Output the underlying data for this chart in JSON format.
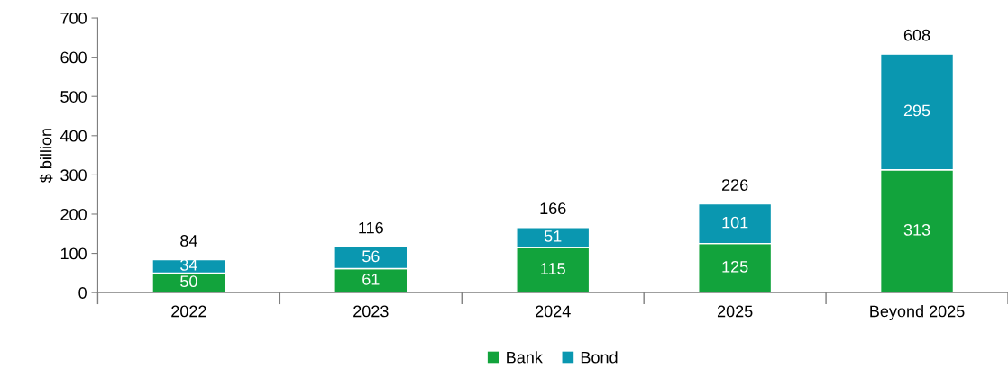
{
  "chart_data": {
    "type": "bar",
    "stacked": true,
    "ylabel": "$ billion",
    "categories": [
      "2022",
      "2023",
      "2024",
      "2025",
      "Beyond 2025"
    ],
    "series": [
      {
        "name": "Bank",
        "color": "#12a33c",
        "values": [
          50,
          61,
          115,
          125,
          313
        ]
      },
      {
        "name": "Bond",
        "color": "#0a97b0",
        "values": [
          34,
          56,
          51,
          101,
          295
        ]
      }
    ],
    "totals": [
      "84",
      "116",
      "166",
      "226",
      "608"
    ],
    "data_labels": true,
    "ylim": [
      0,
      700
    ],
    "yticks": [
      0,
      100,
      200,
      300,
      400,
      500,
      600,
      700
    ],
    "grid": false,
    "legend": "bottom"
  }
}
